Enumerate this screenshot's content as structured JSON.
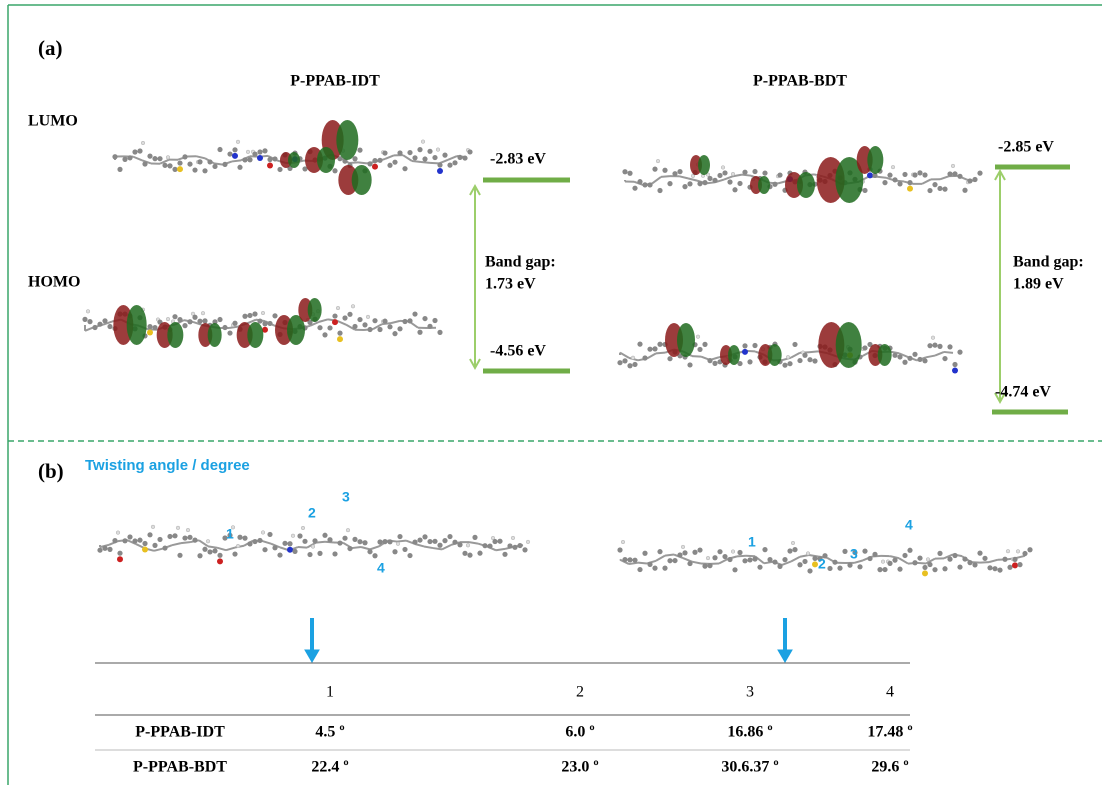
{
  "panel_a": {
    "label": "(a)",
    "lumo_label": "LUMO",
    "homo_label": "HOMO",
    "molecules": [
      {
        "name": "P-PPAB-IDT",
        "lumo_energy": "-2.83 eV",
        "homo_energy": "-4.56 eV",
        "band_gap_title": "Band gap:",
        "band_gap": "1.73 eV"
      },
      {
        "name": "P-PPAB-BDT",
        "lumo_energy": "-2.85 eV",
        "homo_energy": "-4.74 eV",
        "band_gap_title": "Band gap:",
        "band_gap": "1.89 eV"
      }
    ]
  },
  "panel_b": {
    "label": "(b)",
    "title": "Twisting angle / degree",
    "angle_markers": [
      [
        "1",
        "2",
        "3",
        "4"
      ],
      [
        "1",
        "2",
        "3",
        "4"
      ]
    ],
    "table": {
      "header": [
        "1",
        "2",
        "3",
        "4"
      ],
      "rows": [
        [
          "P-PPAB-IDT",
          "4.5 º",
          "6.0 º",
          "16.86 º",
          "17.48 º"
        ],
        [
          "P-PPAB-BDT",
          "22.4 º",
          "23.0 º",
          "30.6.37 º",
          "29.6 º"
        ]
      ]
    }
  }
}
